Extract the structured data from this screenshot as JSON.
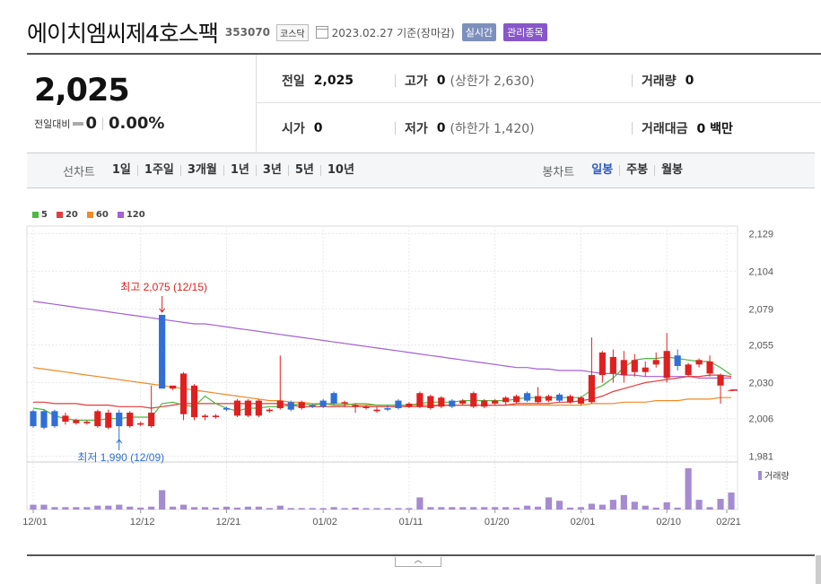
{
  "header": {
    "stock_name": "에이치엠씨제4호스팩",
    "stock_code": "353070",
    "market": "코스닥",
    "date_text": "2023.02.27  기준(장마감)",
    "realtime_tag": "실시간",
    "managed_tag": "관리종목",
    "colors": {
      "realtime_bg": "#7d90bd",
      "managed_bg": "#8757c9"
    }
  },
  "price": {
    "current": "2,025",
    "change_label": "전일대비",
    "change_value": "0",
    "change_rate": "0.00%"
  },
  "stats": {
    "prev_close_label": "전일",
    "prev_close": "2,025",
    "high_label": "고가",
    "high": "0",
    "upper_limit": "(상한가 2,630)",
    "volume_label": "거래량",
    "volume": "0",
    "open_label": "시가",
    "open": "0",
    "low_label": "저가",
    "low": "0",
    "lower_limit": "(하한가 1,420)",
    "amount_label": "거래대금",
    "amount": "0 백만"
  },
  "tabs": {
    "line_title": "선차트",
    "line_items": [
      "1일",
      "1주일",
      "3개월",
      "1년",
      "3년",
      "5년",
      "10년"
    ],
    "candle_title": "봉차트",
    "candle_items": [
      "일봉",
      "주봉",
      "월봉"
    ],
    "candle_selected": 0
  },
  "legend": [
    {
      "label": "5",
      "color": "#4bb83f"
    },
    {
      "label": "20",
      "color": "#e23c3c"
    },
    {
      "label": "60",
      "color": "#f08a24"
    },
    {
      "label": "120",
      "color": "#a55fd6"
    }
  ],
  "toggle_icon": "chevron-up-icon",
  "chart_data": {
    "type": "candlestick",
    "y_ticks": [
      "2,129",
      "2,104",
      "2,079",
      "2,055",
      "2,030",
      "2,006",
      "1,981"
    ],
    "ylim": [
      1979,
      2134
    ],
    "x_ticks": [
      "12/01",
      "12/12",
      "12/21",
      "01/02",
      "01/11",
      "01/20",
      "02/01",
      "02/10",
      "02/21"
    ],
    "high_annotation": "최고 2,075 (12/15)",
    "low_annotation": "최저 1,990 (12/09)",
    "volume_label": "거래량",
    "colors": {
      "up": "#e02020",
      "down": "#2f6fd6"
    },
    "candles": [
      [
        2011,
        2001,
        2000,
        2012
      ],
      [
        2011,
        2000,
        1999,
        2012
      ],
      [
        2011,
        2001,
        2000,
        2012
      ],
      [
        2004,
        2008,
        2002,
        2010
      ],
      [
        2003,
        2005,
        2002,
        2006
      ],
      [
        2003,
        2004,
        2002,
        2005
      ],
      [
        2001,
        2011,
        2000,
        2012
      ],
      [
        2000,
        2010,
        1999,
        2012
      ],
      [
        2010,
        2001,
        1990,
        2012
      ],
      [
        2001,
        2010,
        2000,
        2011
      ],
      [
        2002,
        2003,
        2001,
        2004
      ],
      [
        2001,
        2010,
        2000,
        2028
      ],
      [
        2075,
        2026,
        2026,
        2075
      ],
      [
        2026,
        2028,
        2025,
        2027
      ],
      [
        2009,
        2036,
        2005,
        2037
      ],
      [
        2007,
        2028,
        2005,
        2029
      ],
      [
        2007,
        2008,
        2005,
        2009
      ],
      [
        2007,
        2008,
        2006,
        2009
      ],
      [
        2013,
        2012,
        2011,
        2014
      ],
      [
        2008,
        2018,
        2007,
        2019
      ],
      [
        2008,
        2018,
        2007,
        2019
      ],
      [
        2008,
        2018,
        2007,
        2019
      ],
      [
        2011,
        2012,
        2010,
        2013
      ],
      [
        2013,
        2018,
        2012,
        2048
      ],
      [
        2017,
        2012,
        2011,
        2018
      ],
      [
        2013,
        2017,
        2012,
        2018
      ],
      [
        2015,
        2014,
        2013,
        2016
      ],
      [
        2018,
        2014,
        2013,
        2019
      ],
      [
        2023,
        2016,
        2015,
        2024
      ],
      [
        2016,
        2017,
        2014,
        2018
      ],
      [
        2014,
        2015,
        2010,
        2016
      ],
      [
        2013,
        2014,
        2012,
        2015
      ],
      [
        2011,
        2012,
        2010,
        2014
      ],
      [
        2013,
        2012,
        2011,
        2015
      ],
      [
        2018,
        2013,
        2012,
        2019
      ],
      [
        2014,
        2016,
        2013,
        2017
      ],
      [
        2014,
        2023,
        2013,
        2024
      ],
      [
        2013,
        2021,
        2012,
        2022
      ],
      [
        2014,
        2020,
        2013,
        2021
      ],
      [
        2018,
        2014,
        2013,
        2019
      ],
      [
        2016,
        2018,
        2015,
        2019
      ],
      [
        2014,
        2023,
        2013,
        2024
      ],
      [
        2014,
        2018,
        2013,
        2019
      ],
      [
        2016,
        2018,
        2015,
        2019
      ],
      [
        2017,
        2020,
        2015,
        2021
      ],
      [
        2017,
        2021,
        2016,
        2022
      ],
      [
        2023,
        2018,
        2017,
        2024
      ],
      [
        2017,
        2021,
        2016,
        2027
      ],
      [
        2018,
        2021,
        2017,
        2022
      ],
      [
        2022,
        2018,
        2017,
        2023
      ],
      [
        2017,
        2021,
        2016,
        2022
      ],
      [
        2016,
        2020,
        2015,
        2021
      ],
      [
        2017,
        2035,
        2016,
        2060
      ],
      [
        2035,
        2050,
        2030,
        2051
      ],
      [
        2036,
        2047,
        2030,
        2052
      ],
      [
        2035,
        2045,
        2030,
        2051
      ],
      [
        2037,
        2045,
        2034,
        2049
      ],
      [
        2037,
        2040,
        2034,
        2044
      ],
      [
        2042,
        2045,
        2040,
        2050
      ],
      [
        2033,
        2051,
        2030,
        2063
      ],
      [
        2048,
        2041,
        2038,
        2052
      ],
      [
        2035,
        2042,
        2034,
        2043
      ],
      [
        2042,
        2045,
        2040,
        2046
      ],
      [
        2036,
        2044,
        2034,
        2048
      ],
      [
        2028,
        2035,
        2016,
        2036
      ],
      [
        2025,
        2025,
        2025,
        2025
      ]
    ],
    "ma5": [
      2013,
      2012,
      2008,
      2006,
      2005,
      2005,
      2005,
      2006,
      2006,
      2007,
      2007,
      2007,
      2016,
      2017,
      2015,
      2014,
      2021,
      2016,
      2013,
      2011,
      2013,
      2013,
      2014,
      2014,
      2015,
      2016,
      2015,
      2016,
      2015,
      2015,
      2016,
      2016,
      2015,
      2015,
      2015,
      2015,
      2016,
      2017,
      2017,
      2017,
      2018,
      2018,
      2018,
      2018,
      2018,
      2019,
      2020,
      2020,
      2020,
      2020,
      2020,
      2020,
      2025,
      2028,
      2033,
      2040,
      2045,
      2046,
      2046,
      2047,
      2046,
      2045,
      2044,
      2044,
      2040,
      2035
    ],
    "ma20": [
      2017,
      2017,
      2016,
      2016,
      2016,
      2015,
      2015,
      2015,
      2014,
      2014,
      2014,
      2013,
      2014,
      2015,
      2016,
      2016,
      2016,
      2016,
      2016,
      2016,
      2016,
      2016,
      2016,
      2016,
      2015,
      2014,
      2014,
      2014,
      2014,
      2014,
      2014,
      2014,
      2014,
      2014,
      2014,
      2014,
      2014,
      2014,
      2015,
      2015,
      2015,
      2015,
      2015,
      2015,
      2015,
      2016,
      2016,
      2016,
      2016,
      2017,
      2017,
      2018,
      2019,
      2021,
      2024,
      2026,
      2028,
      2030,
      2031,
      2032,
      2033,
      2034,
      2034,
      2035,
      2035,
      2034
    ],
    "ma60": [
      2040,
      2039,
      2038,
      2037,
      2036,
      2035,
      2034,
      2033,
      2032,
      2031,
      2030,
      2029,
      2028,
      2027,
      2026,
      2025,
      2024,
      2023,
      2022,
      2021,
      2020,
      2019,
      2018,
      2018,
      2017,
      2017,
      2016,
      2016,
      2016,
      2016,
      2015,
      2015,
      2015,
      2015,
      2015,
      2015,
      2015,
      2015,
      2015,
      2015,
      2015,
      2015,
      2015,
      2015,
      2015,
      2015,
      2015,
      2015,
      2015,
      2015,
      2015,
      2015,
      2016,
      2016,
      2016,
      2017,
      2017,
      2017,
      2018,
      2018,
      2018,
      2019,
      2019,
      2019,
      2020,
      2020
    ],
    "ma120": [
      2084,
      2083,
      2082,
      2081,
      2080,
      2079,
      2078,
      2077,
      2076,
      2075,
      2074,
      2073,
      2072,
      2071,
      2070,
      2069,
      2069,
      2068,
      2067,
      2066,
      2065,
      2064,
      2063,
      2062,
      2061,
      2060,
      2059,
      2058,
      2057,
      2056,
      2055,
      2054,
      2053,
      2052,
      2051,
      2050,
      2049,
      2048,
      2047,
      2046,
      2045,
      2044,
      2043,
      2042,
      2041,
      2040,
      2040,
      2039,
      2039,
      2038,
      2038,
      2038,
      2037,
      2036,
      2036,
      2035,
      2035,
      2034,
      2034,
      2034,
      2034,
      2034,
      2033,
      2033,
      2033,
      2033
    ],
    "volume": [
      1,
      1,
      0.5,
      0.5,
      0.5,
      0.5,
      0.8,
      0.8,
      1,
      0.6,
      0.4,
      0.6,
      4,
      0.6,
      1,
      0.5,
      0.5,
      0.4,
      0.6,
      0.4,
      0.6,
      0.6,
      0.3,
      0.8,
      0.3,
      0.3,
      0.3,
      0.3,
      0.5,
      0.3,
      0.4,
      0.3,
      0.3,
      0.3,
      0.3,
      0.3,
      2.5,
      0.5,
      0.5,
      0.5,
      0.5,
      0.5,
      0.5,
      0.5,
      0.5,
      0.4,
      0.8,
      0.6,
      2.5,
      1.8,
      0.4,
      0.5,
      1.2,
      1,
      2,
      3,
      1.6,
      0.8,
      0.4,
      1.5,
      0.4,
      8.5,
      2,
      0.5,
      2.2,
      3.5
    ]
  }
}
